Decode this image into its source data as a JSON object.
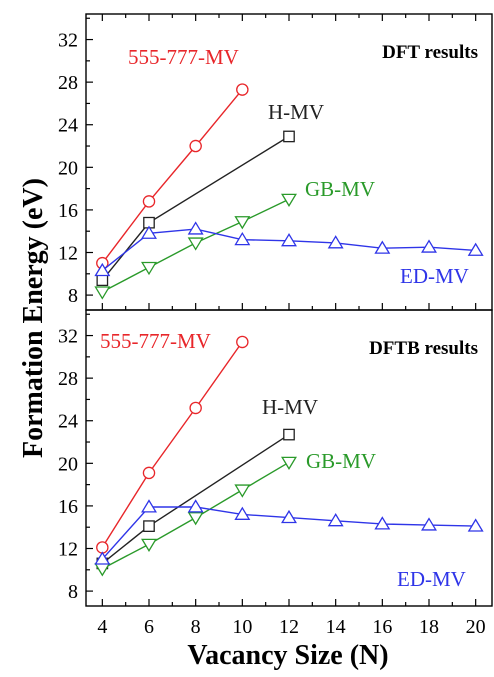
{
  "figure": {
    "xlabel": "Vacancy Size (N)",
    "ylabel": "Formation Energy (eV)"
  },
  "chart_data": [
    {
      "type": "line",
      "title": "DFT results",
      "xlabel": "Vacancy Size (N)",
      "ylabel": "Formation Energy (eV)",
      "xlim": [
        3.3,
        20.7
      ],
      "ylim": [
        6.6,
        34.4
      ],
      "x_ticks": [
        4,
        6,
        8,
        10,
        12,
        14,
        16,
        18,
        20
      ],
      "y_ticks": [
        8,
        12,
        16,
        20,
        24,
        28,
        32
      ],
      "grid": false,
      "series": [
        {
          "name": "555-777-MV",
          "color": "#e8262a",
          "marker": "circle",
          "x": [
            4,
            6,
            8,
            10
          ],
          "y": [
            11.0,
            16.8,
            22.0,
            27.3
          ]
        },
        {
          "name": "H-MV",
          "color": "#222222",
          "marker": "square",
          "x": [
            4,
            6,
            12
          ],
          "y": [
            9.4,
            14.8,
            22.9
          ]
        },
        {
          "name": "GB-MV",
          "color": "#2a9a2a",
          "marker": "triangle-down",
          "x": [
            4,
            6,
            8,
            10,
            12
          ],
          "y": [
            8.3,
            10.6,
            12.9,
            14.9,
            17.0
          ]
        },
        {
          "name": "ED-MV",
          "color": "#2f35e8",
          "marker": "triangle-up",
          "x": [
            4,
            6,
            8,
            10,
            12,
            14,
            16,
            18,
            20
          ],
          "y": [
            10.3,
            13.8,
            14.2,
            13.2,
            13.1,
            12.9,
            12.4,
            12.5,
            12.2
          ]
        }
      ]
    },
    {
      "type": "line",
      "title": "DFTB results",
      "xlabel": "Vacancy Size (N)",
      "ylabel": "Formation Energy (eV)",
      "xlim": [
        3.3,
        20.7
      ],
      "ylim": [
        6.6,
        34.4
      ],
      "x_ticks": [
        4,
        6,
        8,
        10,
        12,
        14,
        16,
        18,
        20
      ],
      "y_ticks": [
        8,
        12,
        16,
        20,
        24,
        28,
        32
      ],
      "grid": false,
      "series": [
        {
          "name": "555-777-MV",
          "color": "#e8262a",
          "marker": "circle",
          "x": [
            4,
            6,
            8,
            10
          ],
          "y": [
            12.1,
            19.1,
            25.2,
            31.4
          ]
        },
        {
          "name": "H-MV",
          "color": "#222222",
          "marker": "square",
          "x": [
            4,
            6,
            12
          ],
          "y": [
            10.6,
            14.1,
            22.7
          ]
        },
        {
          "name": "GB-MV",
          "color": "#2a9a2a",
          "marker": "triangle-down",
          "x": [
            4,
            6,
            8,
            10,
            12
          ],
          "y": [
            10.1,
            12.4,
            14.9,
            17.5,
            20.1
          ]
        },
        {
          "name": "ED-MV",
          "color": "#2f35e8",
          "marker": "triangle-up",
          "x": [
            4,
            6,
            8,
            10,
            12,
            14,
            16,
            18,
            20
          ],
          "y": [
            11.0,
            15.9,
            15.9,
            15.2,
            14.9,
            14.6,
            14.3,
            14.2,
            14.1
          ]
        }
      ]
    }
  ]
}
